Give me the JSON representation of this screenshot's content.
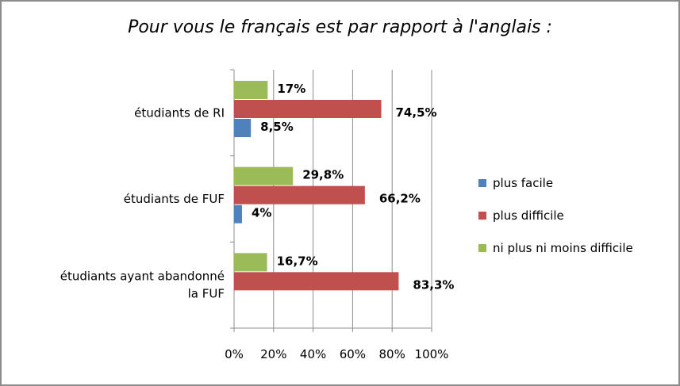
{
  "chart_data": {
    "type": "bar",
    "orientation": "horizontal",
    "title": "Pour vous le français est par rapport à l'anglais :",
    "categories": [
      [
        "étudiants de RI"
      ],
      [
        "étudiants de FUF"
      ],
      [
        "étudiants ayant abandonné",
        "la FUF"
      ]
    ],
    "series": [
      {
        "name": "ni plus ni moins difficile",
        "color": "#9bbb59",
        "values": [
          17,
          29.8,
          16.7
        ],
        "labels": [
          "17%",
          "29,8%",
          "16,7%"
        ]
      },
      {
        "name": "plus difficile",
        "color": "#c0504d",
        "values": [
          74.5,
          66.2,
          83.3
        ],
        "labels": [
          "74,5%",
          "66,2%",
          "83,3%"
        ]
      },
      {
        "name": "plus facile",
        "color": "#4f81bd",
        "values": [
          8.5,
          4,
          null
        ],
        "labels": [
          "8,5%",
          "4%",
          null
        ]
      }
    ],
    "xlim": [
      0,
      100
    ],
    "xticks": [
      "0%",
      "20%",
      "40%",
      "60%",
      "80%",
      "100%"
    ],
    "grid": true,
    "legend": "right"
  }
}
